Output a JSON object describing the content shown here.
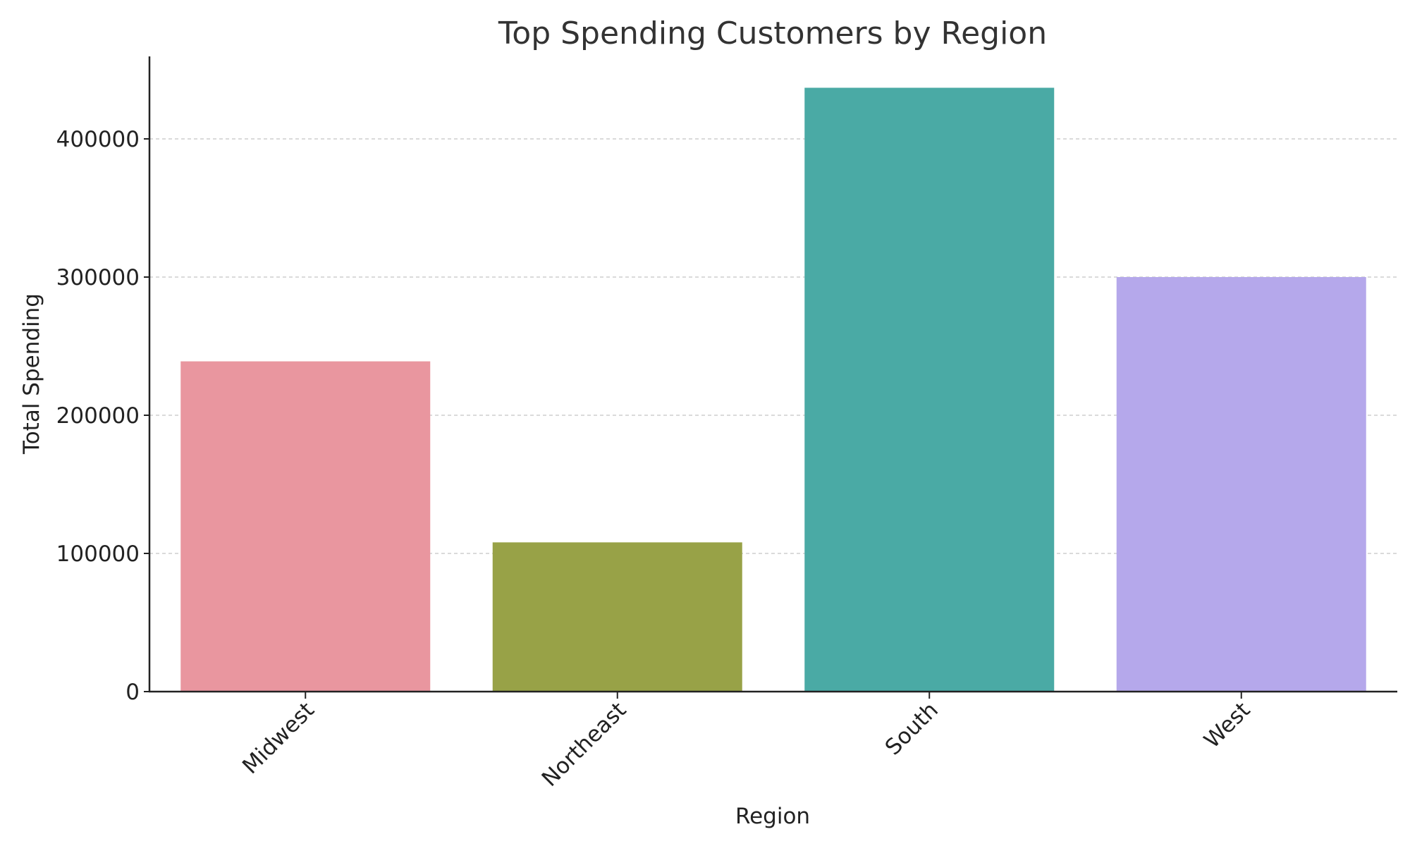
{
  "chart_data": {
    "type": "bar",
    "title": "Top Spending Customers by Region",
    "xlabel": "Region",
    "ylabel": "Total Spending",
    "categories": [
      "Midwest",
      "Northeast",
      "South",
      "West"
    ],
    "values": [
      239000,
      108000,
      437000,
      300000
    ],
    "colors": [
      "#e9969f",
      "#98a247",
      "#4aaaa5",
      "#b5a8eb"
    ],
    "ylim": [
      0,
      460000
    ],
    "yticks": [
      0,
      100000,
      200000,
      300000,
      400000
    ],
    "ytick_labels": [
      "0",
      "100000",
      "200000",
      "300000",
      "400000"
    ],
    "grid": "y-dashed",
    "xtick_rotation_deg": 45
  }
}
